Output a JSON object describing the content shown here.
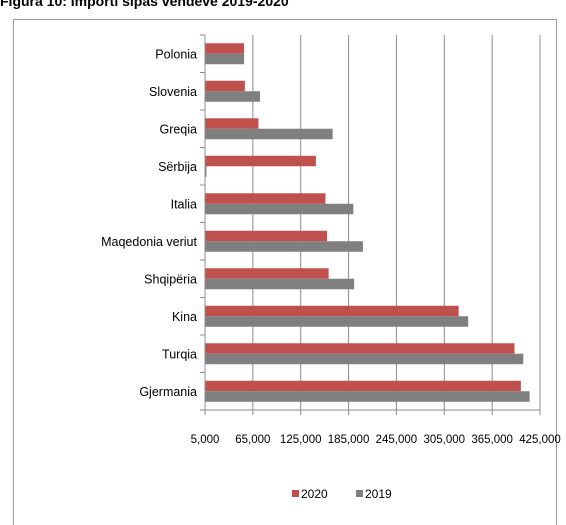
{
  "figure_title": "Figura 10: Importi sipas vendeve 2019-2020",
  "colors": {
    "2020": "#c0504d",
    "2019": "#7f7f7f",
    "grid": "#8c8c8c"
  },
  "chart_data": {
    "type": "bar",
    "orientation": "horizontal",
    "title": "",
    "xlabel": "",
    "ylabel": "",
    "categories": [
      "Polonia",
      "Slovenia",
      "Greqia",
      "Sërbija",
      "Italia",
      "Maqedonia  veriut",
      "Shqipëria",
      "Kina",
      "Turqia",
      "Gjermania"
    ],
    "series": [
      {
        "name": "2020",
        "values": [
          54000,
          55000,
          72000,
          144000,
          156000,
          158000,
          160000,
          323000,
          393000,
          401000
        ]
      },
      {
        "name": "2019",
        "values": [
          54000,
          74000,
          165000,
          3000,
          191000,
          203000,
          192000,
          335000,
          404000,
          412000
        ]
      }
    ],
    "xlim": [
      5000,
      425000
    ],
    "xticks": [
      "5,000",
      "65,000",
      "125,000",
      "185,000",
      "245,000",
      "305,000",
      "365,000",
      "425,000"
    ],
    "grid": true,
    "legend_position": "bottom"
  }
}
